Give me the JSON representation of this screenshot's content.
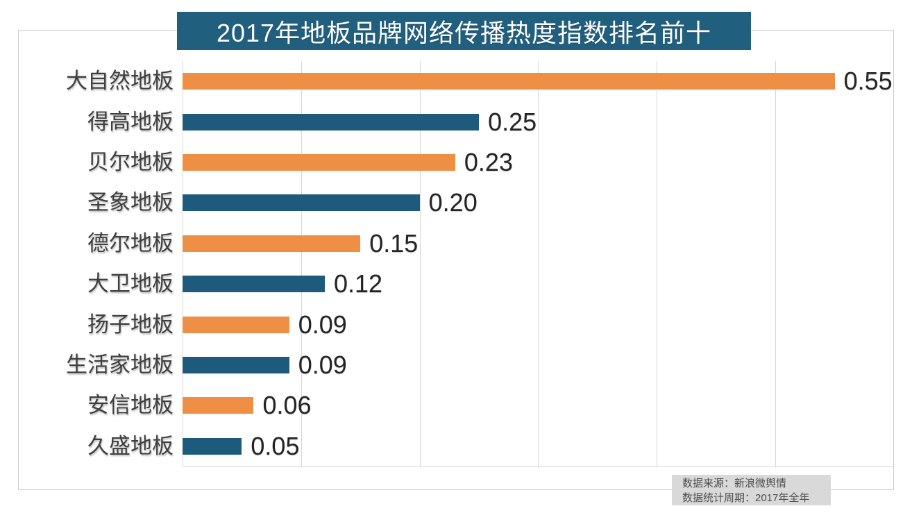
{
  "title": "2017年地板品牌网络传播热度指数排名前十",
  "footer": {
    "source": "数据来源：新浪微舆情",
    "period": "数据统计周期：2017年全年"
  },
  "chart_data": {
    "type": "bar",
    "orientation": "horizontal",
    "title": "2017年地板品牌网络传播热度指数排名前十",
    "categories": [
      "大自然地板",
      "得高地板",
      "贝尔地板",
      "圣象地板",
      "德尔地板",
      "大卫地板",
      "扬子地板",
      "生活家地板",
      "安信地板",
      "久盛地板"
    ],
    "values": [
      0.55,
      0.25,
      0.23,
      0.2,
      0.15,
      0.12,
      0.09,
      0.09,
      0.06,
      0.05
    ],
    "value_labels": [
      "0.55",
      "0.25",
      "0.23",
      "0.20",
      "0.15",
      "0.12",
      "0.09",
      "0.09",
      "0.06",
      "0.05"
    ],
    "xlim": [
      0,
      0.6
    ],
    "gridline_step": 0.1,
    "grid": true,
    "legend_position": "none",
    "bar_palette": [
      "#ee8f45",
      "#1e5a7c"
    ],
    "data_labels": true
  },
  "colors": {
    "banner_bg": "#215f7e",
    "orange_bar": "#ee8f45",
    "blue_bar": "#1e5a7c",
    "gridline": "#d6d6d6",
    "frame_border": "#cbcbcb",
    "footer_bg": "#d9d9d9"
  }
}
